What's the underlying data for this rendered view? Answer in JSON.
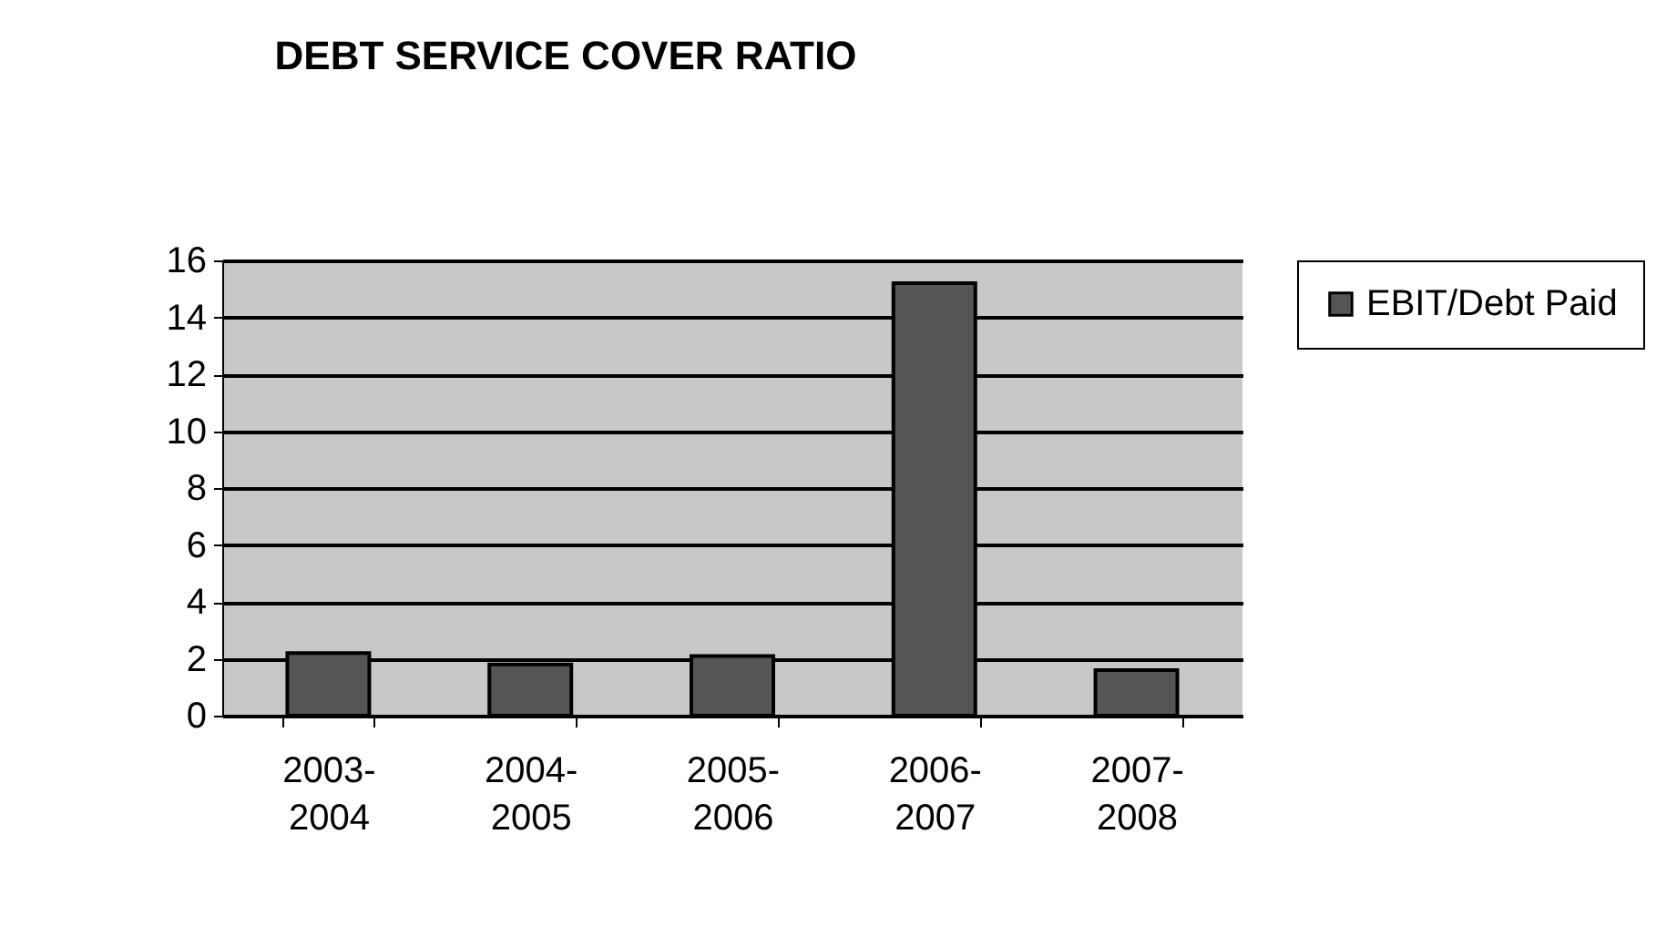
{
  "chart_data": {
    "type": "bar",
    "title": "DEBT SERVICE COVER RATIO",
    "categories": [
      "2003-2004",
      "2004-2005",
      "2005-2006",
      "2006-2007",
      "2007-2008"
    ],
    "series": [
      {
        "name": "EBIT/Debt Paid",
        "color": "#555555",
        "values": [
          2.2,
          1.8,
          2.1,
          15.2,
          1.6
        ]
      }
    ],
    "ylim": [
      0,
      16
    ],
    "yticks": [
      0,
      2,
      4,
      6,
      8,
      10,
      12,
      14,
      16
    ],
    "grid": "y",
    "legend": "right"
  }
}
